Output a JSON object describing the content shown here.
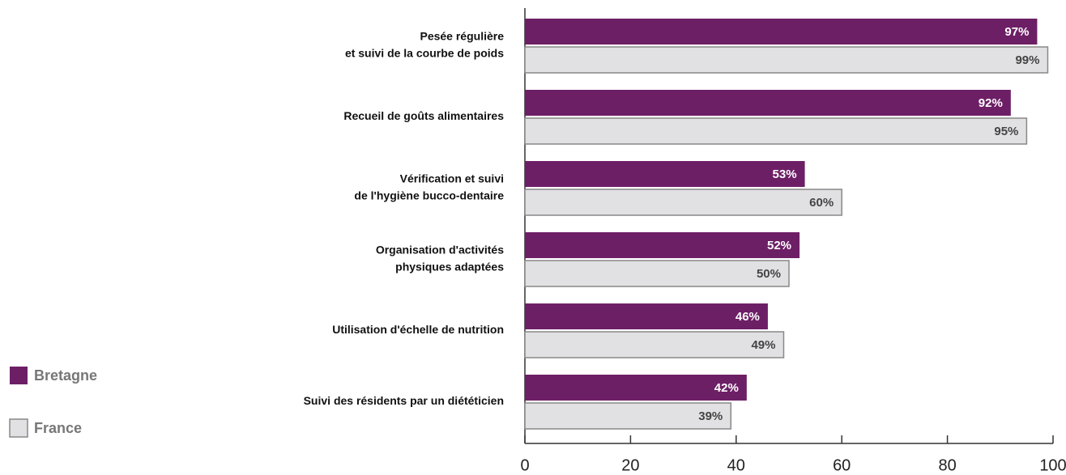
{
  "chart_data": {
    "type": "bar",
    "orientation": "horizontal",
    "categories": [
      [
        "Pesée régulière",
        "et suivi de la courbe de poids"
      ],
      [
        "Recueil de goûts alimentaires"
      ],
      [
        "Vérification et suivi",
        "de l'hygiène bucco-dentaire"
      ],
      [
        "Organisation d'activités",
        "physiques adaptées"
      ],
      [
        "Utilisation d'échelle de nutrition"
      ],
      [
        "Suivi des résidents par un diététicien"
      ]
    ],
    "series": [
      {
        "name": "Bretagne",
        "color": "#6d1f66",
        "values": [
          97,
          92,
          53,
          52,
          46,
          42
        ],
        "value_labels": [
          "97%",
          "92%",
          "53%",
          "52%",
          "46%",
          "42%"
        ]
      },
      {
        "name": "France",
        "color": "#e1e1e3",
        "values": [
          99,
          95,
          60,
          50,
          49,
          39
        ],
        "value_labels": [
          "99%",
          "95%",
          "60%",
          "50%",
          "49%",
          "39%"
        ]
      }
    ],
    "xlim": [
      0,
      100
    ],
    "xticks": [
      0,
      20,
      40,
      60,
      80,
      100
    ]
  }
}
